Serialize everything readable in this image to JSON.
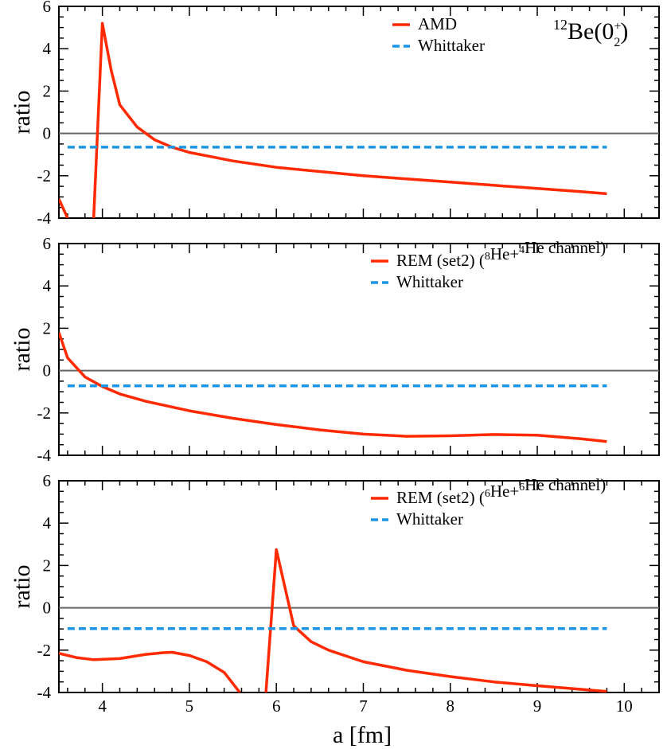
{
  "figure": {
    "xlabel": "a [fm]",
    "ylabel": "ratio",
    "x_ticks": [
      4,
      5,
      6,
      7,
      8,
      9,
      10
    ],
    "y_ticks": [
      -4,
      -2,
      0,
      2,
      4,
      6
    ],
    "xlim": [
      3.5,
      10.4
    ],
    "ylim": [
      -4,
      6
    ],
    "zero_line_color": "#666666"
  },
  "chart_data": [
    {
      "type": "line",
      "panel": "top",
      "annotation": {
        "nucleus": "Be",
        "mass": "12",
        "state": "0",
        "parity": "+",
        "index": "2"
      },
      "legend_position": "top-right",
      "xlim": [
        3.5,
        10.4
      ],
      "ylim": [
        -4,
        6
      ],
      "series": [
        {
          "name": "AMD",
          "color": "#ff2a00",
          "dashed": false,
          "segments": [
            [
              [
                3.5,
                -3.1
              ],
              [
                3.6,
                -4.0
              ]
            ],
            [
              [
                3.9,
                -4.0
              ],
              [
                4.0,
                5.2
              ],
              [
                4.1,
                3.0
              ],
              [
                4.2,
                1.35
              ],
              [
                4.4,
                0.3
              ],
              [
                4.6,
                -0.3
              ],
              [
                4.8,
                -0.65
              ],
              [
                5.0,
                -0.9
              ],
              [
                5.5,
                -1.3
              ],
              [
                6.0,
                -1.6
              ],
              [
                6.5,
                -1.8
              ],
              [
                7.0,
                -2.0
              ],
              [
                7.5,
                -2.15
              ],
              [
                8.0,
                -2.3
              ],
              [
                8.5,
                -2.45
              ],
              [
                9.0,
                -2.6
              ],
              [
                9.5,
                -2.75
              ],
              [
                9.8,
                -2.85
              ]
            ]
          ]
        },
        {
          "name": "Whittaker",
          "color": "#1c95e6",
          "dashed": true,
          "segments": [
            [
              [
                3.6,
                -0.65
              ],
              [
                9.8,
                -0.65
              ]
            ]
          ]
        }
      ]
    },
    {
      "type": "line",
      "panel": "middle",
      "legend_position": "top-right",
      "xlim": [
        3.5,
        10.4
      ],
      "ylim": [
        -4,
        6
      ],
      "series": [
        {
          "name": "REM (set2)",
          "channel": {
            "a1": "8",
            "n1": "He",
            "a2": "4",
            "n2": "He",
            "suffix": " channel"
          },
          "color": "#ff2a00",
          "dashed": false,
          "segments": [
            [
              [
                3.5,
                1.8
              ],
              [
                3.6,
                0.6
              ],
              [
                3.8,
                -0.3
              ],
              [
                4.0,
                -0.75
              ],
              [
                4.2,
                -1.1
              ],
              [
                4.5,
                -1.45
              ],
              [
                5.0,
                -1.9
              ],
              [
                5.5,
                -2.25
              ],
              [
                6.0,
                -2.55
              ],
              [
                6.5,
                -2.8
              ],
              [
                7.0,
                -3.0
              ],
              [
                7.5,
                -3.1
              ],
              [
                8.0,
                -3.08
              ],
              [
                8.5,
                -3.02
              ],
              [
                9.0,
                -3.05
              ],
              [
                9.5,
                -3.22
              ],
              [
                9.8,
                -3.35
              ]
            ]
          ]
        },
        {
          "name": "Whittaker",
          "color": "#1c95e6",
          "dashed": true,
          "segments": [
            [
              [
                3.6,
                -0.72
              ],
              [
                9.8,
                -0.72
              ]
            ]
          ]
        }
      ]
    },
    {
      "type": "line",
      "panel": "bottom",
      "legend_position": "top-right",
      "xlim": [
        3.5,
        10.4
      ],
      "ylim": [
        -4,
        6
      ],
      "series": [
        {
          "name": "REM (set2)",
          "channel": {
            "a1": "6",
            "n1": "He",
            "a2": "6",
            "n2": "He",
            "suffix": " channel"
          },
          "color": "#ff2a00",
          "dashed": false,
          "segments": [
            [
              [
                3.5,
                -2.15
              ],
              [
                3.7,
                -2.35
              ],
              [
                3.9,
                -2.45
              ],
              [
                4.2,
                -2.4
              ],
              [
                4.5,
                -2.2
              ],
              [
                4.7,
                -2.12
              ],
              [
                4.8,
                -2.1
              ],
              [
                5.0,
                -2.25
              ],
              [
                5.2,
                -2.55
              ],
              [
                5.4,
                -3.05
              ],
              [
                5.58,
                -4.0
              ]
            ],
            [
              [
                5.88,
                -4.0
              ],
              [
                6.0,
                2.75
              ],
              [
                6.2,
                -0.85
              ],
              [
                6.4,
                -1.6
              ],
              [
                6.6,
                -2.0
              ],
              [
                7.0,
                -2.55
              ],
              [
                7.5,
                -2.95
              ],
              [
                8.0,
                -3.25
              ],
              [
                8.5,
                -3.5
              ],
              [
                9.0,
                -3.68
              ],
              [
                9.5,
                -3.85
              ],
              [
                9.8,
                -3.95
              ]
            ]
          ]
        },
        {
          "name": "Whittaker",
          "color": "#1c95e6",
          "dashed": true,
          "segments": [
            [
              [
                3.6,
                -0.98
              ],
              [
                9.8,
                -0.98
              ]
            ]
          ]
        }
      ]
    }
  ]
}
